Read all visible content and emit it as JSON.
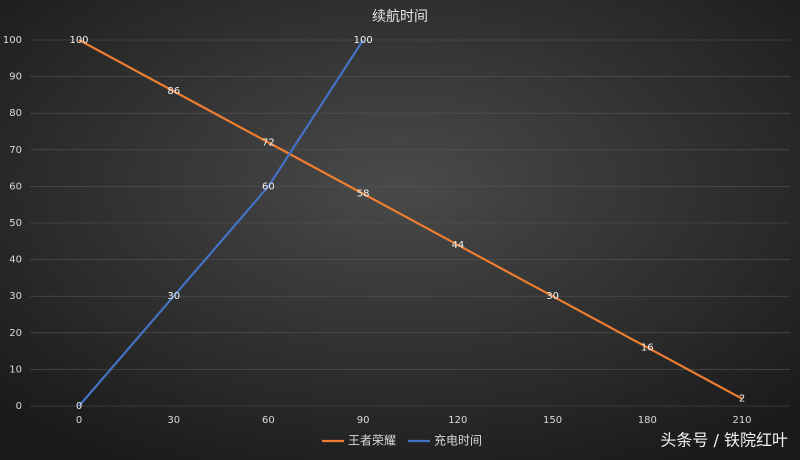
{
  "chart_data": {
    "type": "line",
    "title": "续航时间",
    "x": [
      0,
      30,
      60,
      90,
      120,
      150,
      180,
      210
    ],
    "series": [
      {
        "name": "王者荣耀",
        "color": "#ed7d31",
        "values": [
          100,
          86,
          72,
          58,
          44,
          30,
          16,
          2
        ]
      },
      {
        "name": "充电时间",
        "color": "#4472c4",
        "values": [
          0,
          30,
          60,
          100,
          null,
          null,
          null,
          null
        ]
      }
    ],
    "xlim": [
      0,
      210
    ],
    "xticks": [
      0,
      30,
      60,
      90,
      120,
      150,
      180,
      210
    ],
    "ylim": [
      0,
      100
    ],
    "yticks": [
      0,
      10,
      20,
      30,
      40,
      50,
      60,
      70,
      80,
      90,
      100
    ],
    "grid": true,
    "legend": "bottom",
    "data_labels": true
  },
  "watermark": "头条号 / 铁院红叶"
}
